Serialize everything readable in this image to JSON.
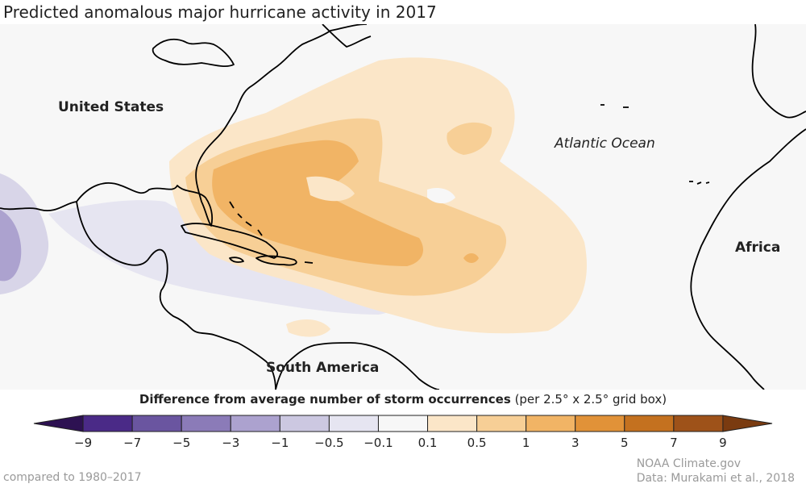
{
  "title": "Predicted anomalous major hurricane activity in 2017",
  "labels": {
    "united_states": "United States",
    "atlantic_ocean": "Atlantic Ocean",
    "africa": "Africa",
    "south_america": "South America"
  },
  "legend": {
    "title_bold": "Difference from average number of storm occurrences",
    "title_rest": "(per 2.5° x 2.5° grid box)",
    "ticks": [
      "−9",
      "−7",
      "−5",
      "−3",
      "−1",
      "−0.5",
      "−0.1",
      "0.1",
      "0.5",
      "1",
      "3",
      "5",
      "7",
      "9"
    ],
    "colors": [
      "#2d1152",
      "#4a2a87",
      "#6a55a0",
      "#8b7bb8",
      "#aca2cf",
      "#ccc8e1",
      "#e6e5f1",
      "#f7f7f7",
      "#fbe6c8",
      "#f7cf96",
      "#f1b465",
      "#e19238",
      "#c4711f",
      "#9e5219",
      "#7a3b10"
    ]
  },
  "colors": {
    "land_outline": "#000000",
    "map_background": "#f7f7f7"
  },
  "footer": {
    "baseline": "compared to 1980–2017",
    "source": "NOAA Climate.gov",
    "data_credit": "Data: Murakami et al., 2018"
  }
}
